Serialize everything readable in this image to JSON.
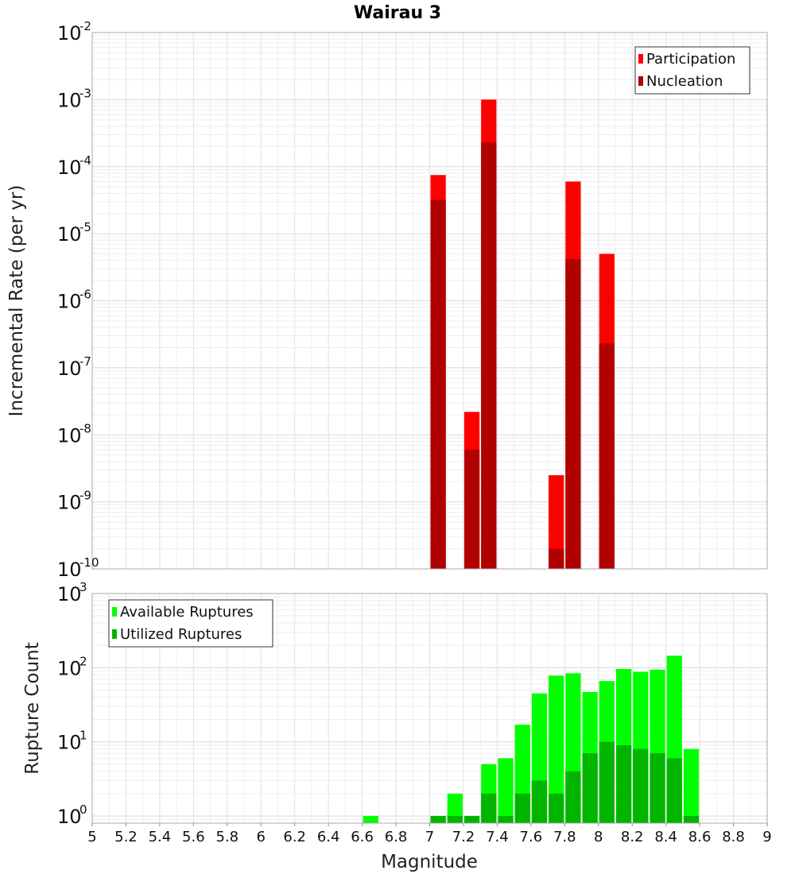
{
  "title": "Wairau 3",
  "x_axis": {
    "label": "Magnitude",
    "range": [
      5,
      9
    ],
    "ticks": [
      "5",
      "5.2",
      "5.4",
      "5.6",
      "5.8",
      "6",
      "6.2",
      "6.4",
      "6.6",
      "6.8",
      "7",
      "7.2",
      "7.4",
      "7.6",
      "7.8",
      "8",
      "8.2",
      "8.4",
      "8.6",
      "8.8",
      "9"
    ]
  },
  "chart_data": [
    {
      "type": "bar",
      "ylabel": "Incremental Rate (per yr)",
      "yscale": "log",
      "ylim": [
        1e-10,
        0.01
      ],
      "ytick_exponents": [
        "-2",
        "-3",
        "-4",
        "-5",
        "-6",
        "-7",
        "-8",
        "-9",
        "-10"
      ],
      "ytick_base": "10",
      "legend": {
        "position": "top-right"
      },
      "bin_width": 0.1,
      "series": [
        {
          "name": "Participation",
          "color": "#ff0000",
          "points": [
            {
              "x": 7.05,
              "y": 7.5e-05
            },
            {
              "x": 7.25,
              "y": 2.2e-08
            },
            {
              "x": 7.35,
              "y": 0.001
            },
            {
              "x": 7.75,
              "y": 2.5e-09
            },
            {
              "x": 7.85,
              "y": 6e-05
            },
            {
              "x": 8.05,
              "y": 5e-06
            }
          ]
        },
        {
          "name": "Nucleation",
          "color": "#b00000",
          "points": [
            {
              "x": 7.05,
              "y": 3.2e-05
            },
            {
              "x": 7.25,
              "y": 6e-09
            },
            {
              "x": 7.35,
              "y": 0.00023
            },
            {
              "x": 7.75,
              "y": 2e-10
            },
            {
              "x": 7.85,
              "y": 4.2e-06
            },
            {
              "x": 8.05,
              "y": 2.3e-07
            }
          ]
        }
      ]
    },
    {
      "type": "bar",
      "ylabel": "Rupture Count",
      "yscale": "log",
      "ylim": [
        0.8,
        1000
      ],
      "ytick_exponents": [
        "3",
        "2",
        "1",
        "0"
      ],
      "ytick_base": "10",
      "legend": {
        "position": "top-left"
      },
      "bin_width": 0.1,
      "series": [
        {
          "name": "Available Ruptures",
          "color": "#00ff00",
          "points": [
            {
              "x": 6.65,
              "y": 1
            },
            {
              "x": 7.05,
              "y": 1
            },
            {
              "x": 7.15,
              "y": 2
            },
            {
              "x": 7.25,
              "y": 1
            },
            {
              "x": 7.35,
              "y": 5
            },
            {
              "x": 7.45,
              "y": 6
            },
            {
              "x": 7.55,
              "y": 17
            },
            {
              "x": 7.65,
              "y": 45
            },
            {
              "x": 7.75,
              "y": 78
            },
            {
              "x": 7.85,
              "y": 84
            },
            {
              "x": 7.95,
              "y": 47
            },
            {
              "x": 8.05,
              "y": 66
            },
            {
              "x": 8.15,
              "y": 96
            },
            {
              "x": 8.25,
              "y": 88
            },
            {
              "x": 8.35,
              "y": 94
            },
            {
              "x": 8.45,
              "y": 145
            },
            {
              "x": 8.55,
              "y": 8
            }
          ]
        },
        {
          "name": "Utilized Ruptures",
          "color": "#00b400",
          "points": [
            {
              "x": 7.05,
              "y": 1
            },
            {
              "x": 7.15,
              "y": 1
            },
            {
              "x": 7.25,
              "y": 1
            },
            {
              "x": 7.35,
              "y": 2
            },
            {
              "x": 7.45,
              "y": 1
            },
            {
              "x": 7.55,
              "y": 2
            },
            {
              "x": 7.65,
              "y": 3
            },
            {
              "x": 7.75,
              "y": 2
            },
            {
              "x": 7.85,
              "y": 4
            },
            {
              "x": 7.95,
              "y": 7
            },
            {
              "x": 8.05,
              "y": 10
            },
            {
              "x": 8.15,
              "y": 9
            },
            {
              "x": 8.25,
              "y": 8
            },
            {
              "x": 8.35,
              "y": 7
            },
            {
              "x": 8.45,
              "y": 6
            },
            {
              "x": 8.55,
              "y": 1
            }
          ]
        }
      ]
    }
  ]
}
